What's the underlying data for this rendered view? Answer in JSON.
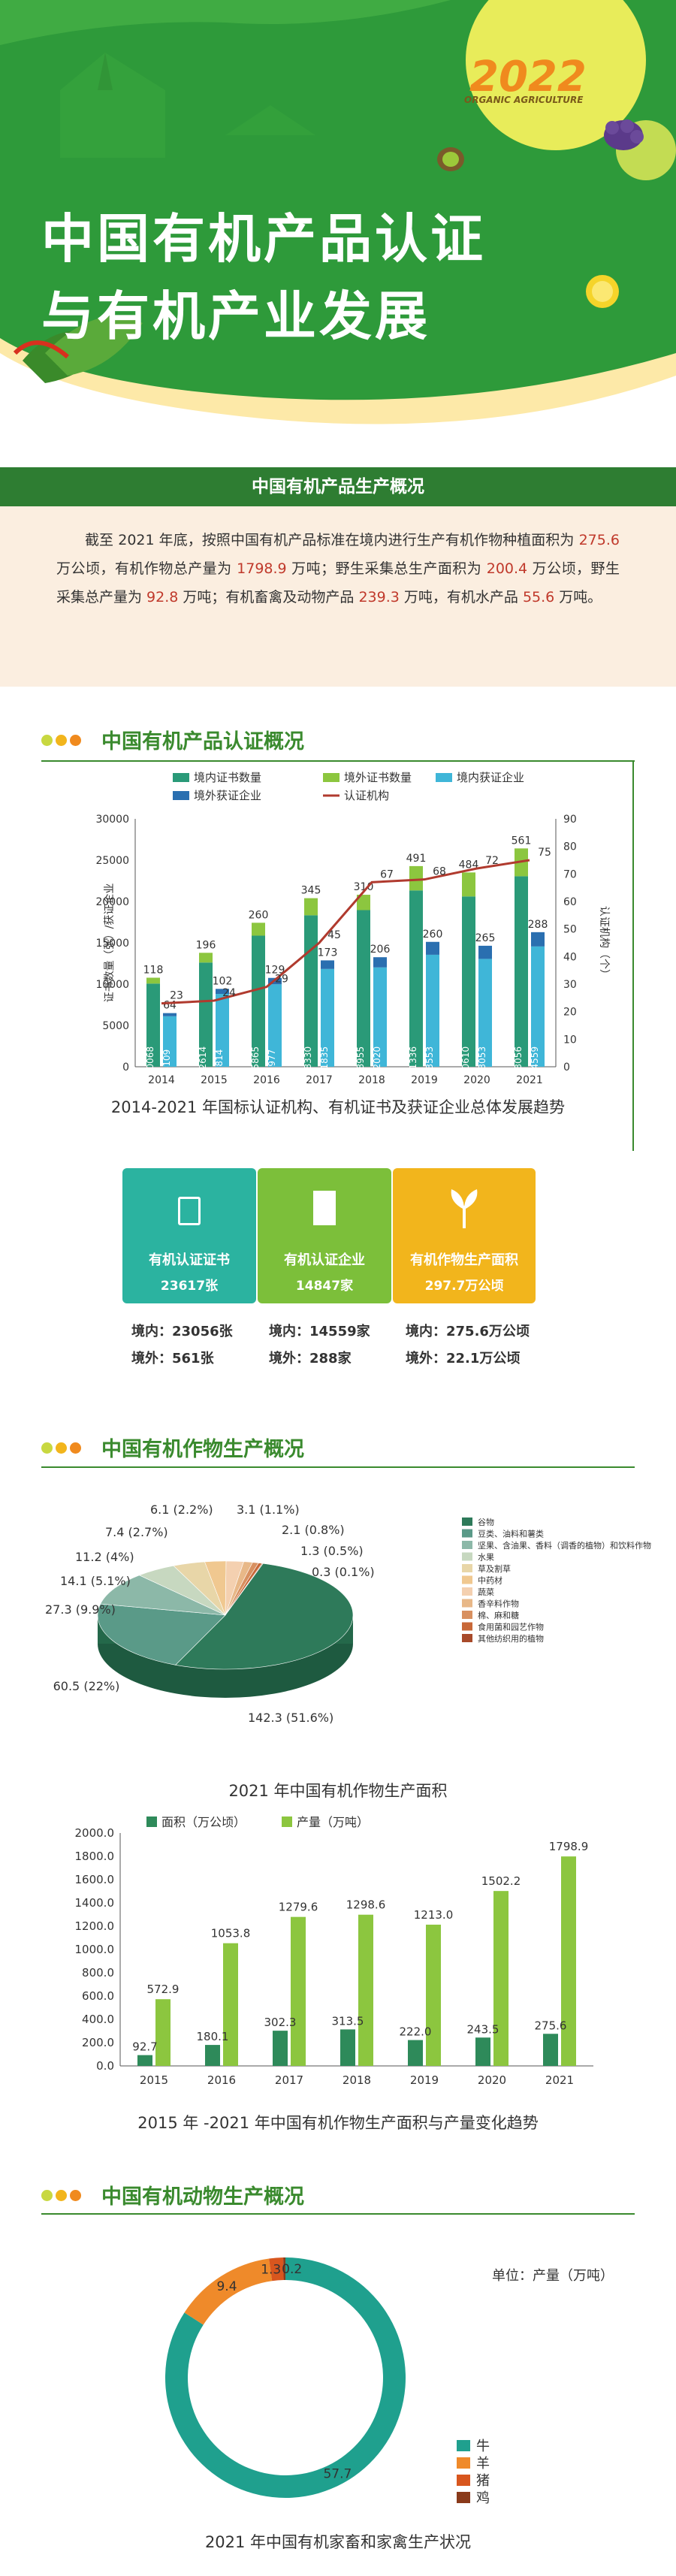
{
  "header": {
    "year": "2022",
    "tagline": "ORGANIC AGRICULTURE",
    "title_line1": "中国有机产品认证",
    "title_line2": "与有机产业发展"
  },
  "overview": {
    "heading": "中国有机产品生产概况",
    "p1": "截至 2021 年底，按照中国有机产品标准在境内进行生产有机作物种植面积为 ",
    "v1": "275.6",
    "p2": " 万公顷，有机作物总产量为 ",
    "v2": "1798.9",
    "p3": " 万吨；野生采集总生产面积为 ",
    "v3": "200.4",
    "p4": " 万公顷，野生采集总产量为 ",
    "v4": "92.8",
    "p5": " 万吨；有机畜禽及动物产品 ",
    "v5": "239.3",
    "p6": " 万吨，有机水产品 ",
    "v6": "55.6",
    "p7": " 万吨。"
  },
  "section1": {
    "heading": "中国有机产品认证概况",
    "caption": "2014-2021 年国标认证机构、有机证书及获证企业总体发展趋势"
  },
  "section2": {
    "heading": "中国有机作物生产概况",
    "caption_pie": "2021 年中国有机作物生产面积",
    "caption_bar": "2015 年 -2021 年中国有机作物生产面积与产量变化趋势"
  },
  "section3": {
    "heading": "中国有机动物生产概况",
    "caption": "2021 年中国有机家畜和家禽生产状况",
    "unit": "单位：产量（万吨）"
  },
  "kpis": [
    {
      "label": "有机认证证书",
      "value": "23617张",
      "color": "#2bb3a0"
    },
    {
      "label": "有机认证企业",
      "value": "14847家",
      "color": "#7cbf3a"
    },
    {
      "label": "有机作物生产面积",
      "value": "297.7万公顷",
      "color": "#f2b51c"
    }
  ],
  "kpi_details": [
    {
      "line1": "境内：23056张",
      "line2": "境外：561张"
    },
    {
      "line1": "境内：14559家",
      "line2": "境外：288家"
    },
    {
      "line1": "境内：275.6万公顷",
      "line2": "境外：22.1万公顷"
    }
  ],
  "colors": {
    "brand_green": "#3a8a2e",
    "domestic_cert": "#2a9a78",
    "foreign_cert": "#8cc63f",
    "domestic_ent": "#3fb6d8",
    "foreign_ent": "#2a6fb0",
    "institutions": "#b03a2e"
  },
  "chart_data": [
    {
      "type": "bar",
      "categories": [
        "2014",
        "2015",
        "2016",
        "2017",
        "2018",
        "2019",
        "2020",
        "2021"
      ],
      "series": [
        {
          "name": "境内证书数量",
          "values": [
            10068,
            12614,
            15865,
            18330,
            18955,
            21336,
            20610,
            23056
          ]
        },
        {
          "name": "境外证书数量",
          "values": [
            118,
            196,
            260,
            345,
            310,
            491,
            484,
            561
          ]
        },
        {
          "name": "境内获证企业",
          "values": [
            6109,
            8814,
            9977,
            11835,
            12020,
            13553,
            13053,
            14559
          ]
        },
        {
          "name": "境外获证企业",
          "values": [
            64,
            102,
            129,
            173,
            206,
            260,
            265,
            288
          ]
        },
        {
          "name": "认证机构",
          "values": [
            23,
            24,
            29,
            45,
            67,
            68,
            72,
            75
          ],
          "axis": "right"
        }
      ],
      "ylabel": "证书数量（张）/获证企业",
      "ylabel_right": "认证机构（个）",
      "ylim": [
        0,
        30000
      ],
      "yticks": [
        "0",
        "5000",
        "10000",
        "15000",
        "20000",
        "25000",
        "30000"
      ],
      "ylim_right": [
        0,
        90
      ],
      "yticks_right": [
        "0",
        "10",
        "20",
        "30",
        "40",
        "50",
        "60",
        "70",
        "80",
        "90"
      ],
      "legend_position": "top"
    },
    {
      "type": "pie",
      "title": "2021 年中国有机作物生产面积",
      "slices": [
        {
          "label": "谷物",
          "value": 142.3,
          "text": "142.3 (51.6%)",
          "color": "#2e7a5a"
        },
        {
          "label": "豆类、油料和薯类",
          "value": 60.5,
          "text": "60.5 (22%)",
          "color": "#5a9a88"
        },
        {
          "label": "坚果、含油果、香料（调香的植物）和饮料作物",
          "value": 27.3,
          "text": "27.3 (9.9%)",
          "color": "#8cb8a8"
        },
        {
          "label": "水果",
          "value": 14.1,
          "text": "14.1 (5.1%)",
          "color": "#c7d8c0"
        },
        {
          "label": "草及割草",
          "value": 11.2,
          "text": "11.2 (4%)",
          "color": "#e8d6a8"
        },
        {
          "label": "中药材",
          "value": 7.4,
          "text": "7.4 (2.7%)",
          "color": "#f0c890"
        },
        {
          "label": "蔬菜",
          "value": 6.1,
          "text": "6.1 (2.2%)",
          "color": "#f4d0b0"
        },
        {
          "label": "香辛料作物",
          "value": 3.1,
          "text": "3.1 (1.1%)",
          "color": "#e8b888"
        },
        {
          "label": "棉、麻和糖",
          "value": 2.1,
          "text": "2.1 (0.8%)",
          "color": "#d89060"
        },
        {
          "label": "食用菌和园艺作物",
          "value": 1.3,
          "text": "1.3 (0.5%)",
          "color": "#c86838"
        },
        {
          "label": "其他纺织用的植物",
          "value": 0.3,
          "text": "0.3 (0.1%)",
          "color": "#a84a2a"
        }
      ]
    },
    {
      "type": "bar",
      "categories": [
        "2015",
        "2016",
        "2017",
        "2018",
        "2019",
        "2020",
        "2021"
      ],
      "series": [
        {
          "name": "面积（万公顷）",
          "values": [
            92.7,
            180.1,
            302.3,
            313.5,
            222.0,
            243.5,
            275.6
          ],
          "labels": [
            "92.7",
            "180.1",
            "302.3",
            "313.5",
            "222.0",
            "243.5",
            "275.6"
          ]
        },
        {
          "name": "产量（万吨）",
          "values": [
            572.9,
            1053.8,
            1279.6,
            1298.6,
            1213.0,
            1502.2,
            1798.9
          ],
          "labels": [
            "572.9",
            "1053.8",
            "1279.6",
            "1298.6",
            "1213.0",
            "1502.2",
            "1798.9"
          ]
        }
      ],
      "ylim": [
        0,
        2000
      ],
      "yticks": [
        "0.0",
        "200.0",
        "400.0",
        "600.0",
        "800.0",
        "1000.0",
        "1200.0",
        "1400.0",
        "1600.0",
        "1800.0",
        "2000.0"
      ],
      "legend_position": "top-left"
    },
    {
      "type": "pie",
      "subtype": "donut",
      "slices": [
        {
          "label": "牛",
          "value": 57.7,
          "color": "#1fa08e"
        },
        {
          "label": "羊",
          "value": 9.4,
          "color": "#ef8a2a"
        },
        {
          "label": "猪",
          "value": 1.3,
          "color": "#d8561e"
        },
        {
          "label": "鸡",
          "value": 0.2,
          "color": "#8a3a1a"
        }
      ]
    }
  ]
}
